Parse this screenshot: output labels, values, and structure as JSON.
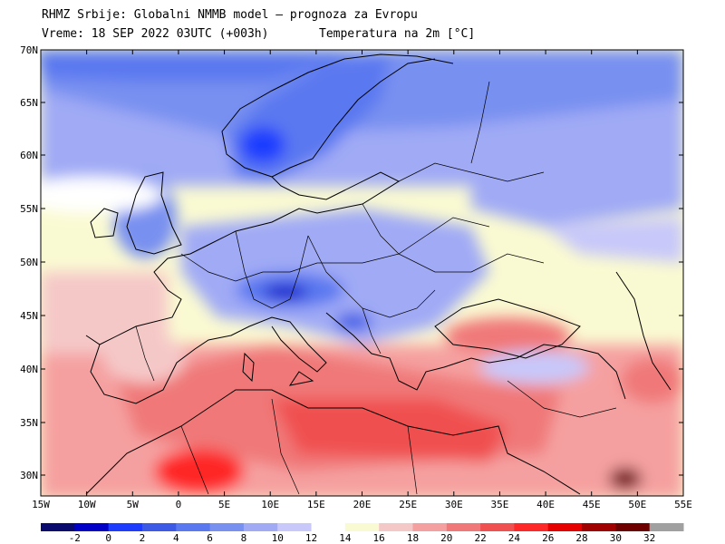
{
  "header": {
    "line1": "RHMZ Srbije: Globalni NMMB model — prognoza za Evropu",
    "line2": "Vreme: 18 SEP 2022 03UTC (+003h)",
    "line3": "Temperatura na 2m [°C]"
  },
  "map": {
    "lat_ticks": [
      "70N",
      "65N",
      "60N",
      "55N",
      "50N",
      "45N",
      "40N",
      "35N",
      "30N"
    ],
    "lon_ticks": [
      "15W",
      "10W",
      "5W",
      "0",
      "5E",
      "10E",
      "15E",
      "20E",
      "25E",
      "30E",
      "35E",
      "40E",
      "45E",
      "50E",
      "55E"
    ]
  },
  "colorbar": {
    "labels": [
      "-2",
      "0",
      "2",
      "4",
      "6",
      "8",
      "10",
      "12",
      "14",
      "16",
      "18",
      "20",
      "22",
      "24",
      "26",
      "28",
      "30",
      "32"
    ],
    "colors": [
      "#0a0a6e",
      "#0000c8",
      "#1e3cff",
      "#3c5ae6",
      "#5a78f0",
      "#7890f0",
      "#a0aaf5",
      "#c8c8fa",
      "#ffffff",
      "#fafad2",
      "#f5c8c8",
      "#f5a0a0",
      "#f07878",
      "#f05050",
      "#ff2828",
      "#e60000",
      "#a00000",
      "#6e0000",
      "#a0a0a0"
    ]
  }
}
